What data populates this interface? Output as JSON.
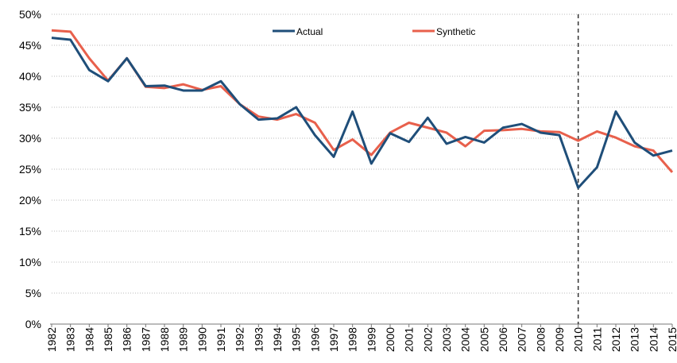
{
  "chart_data": {
    "type": "line",
    "categories": [
      "1982",
      "1983",
      "1984",
      "1985",
      "1986",
      "1987",
      "1988",
      "1989",
      "1990",
      "1991",
      "1992",
      "1993",
      "1994",
      "1995",
      "1996",
      "1997",
      "1998",
      "1999",
      "2000",
      "2001",
      "2002",
      "2003",
      "2004",
      "2005",
      "2006",
      "2007",
      "2008",
      "2009",
      "2010",
      "2011",
      "2012",
      "2013",
      "2014",
      "2015"
    ],
    "series": [
      {
        "name": "Actual",
        "color": "#1f4e79",
        "values": [
          46.2,
          45.9,
          41.0,
          39.2,
          42.9,
          38.4,
          38.5,
          37.7,
          37.7,
          39.2,
          35.5,
          33.0,
          33.2,
          35.0,
          30.5,
          27.0,
          34.3,
          25.9,
          30.8,
          29.4,
          33.3,
          29.1,
          30.2,
          29.3,
          31.7,
          32.3,
          30.9,
          30.5,
          22.0,
          25.3,
          34.3,
          29.3,
          27.2,
          28.0
        ]
      },
      {
        "name": "Synthetic",
        "color": "#e8604c",
        "values": [
          47.4,
          47.2,
          42.9,
          39.3,
          42.9,
          38.3,
          38.1,
          38.7,
          37.8,
          38.4,
          35.5,
          33.5,
          33.0,
          33.9,
          32.5,
          28.1,
          29.8,
          27.3,
          30.9,
          32.5,
          31.7,
          30.9,
          28.7,
          31.2,
          31.3,
          31.5,
          31.1,
          31.0,
          29.6,
          31.1,
          30.1,
          28.7,
          28.0,
          24.5
        ]
      }
    ],
    "ylim": [
      0,
      50
    ],
    "yticks": [
      {
        "value": 0,
        "label": "0%"
      },
      {
        "value": 5,
        "label": "5%"
      },
      {
        "value": 10,
        "label": "10%"
      },
      {
        "value": 15,
        "label": "15%"
      },
      {
        "value": 20,
        "label": "20%"
      },
      {
        "value": 25,
        "label": "25%"
      },
      {
        "value": 30,
        "label": "30%"
      },
      {
        "value": 35,
        "label": "35%"
      },
      {
        "value": 40,
        "label": "40%"
      },
      {
        "value": 45,
        "label": "45%"
      },
      {
        "value": 50,
        "label": "50%"
      }
    ],
    "grid": true,
    "reference_line": "2010",
    "legend": "top"
  }
}
